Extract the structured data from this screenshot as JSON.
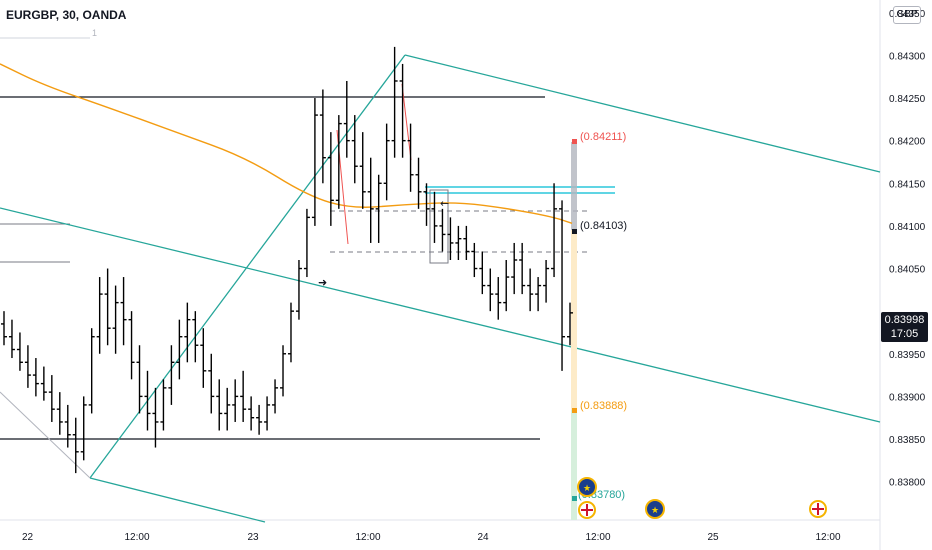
{
  "header": {
    "symbol": "EURGBP, 30, OANDA",
    "currency": "GBP",
    "indicator_value": "1"
  },
  "price_tag": {
    "price": "0.83998",
    "countdown": "17:05"
  },
  "annotations": {
    "target_high": "(0.84211)",
    "entry": "(0.84103)",
    "midpoint": "(0.83888)",
    "target_low": "(0.83780)"
  },
  "colors": {
    "candle": "#000000",
    "channel": "#26a69a",
    "ma": "#f39c12",
    "support": "#131722",
    "target_high": "#ef5350",
    "midpoint": "#f39c12",
    "target_low": "#26a69a",
    "horizontal_zone": "#00bcd4"
  },
  "chart_data": {
    "type": "candlestick",
    "symbol": "EURGBP",
    "timeframe": "30",
    "exchange": "OANDA",
    "ylim": [
      0.83755,
      0.84365
    ],
    "y_ticks": [
      "0.84350",
      "0.84300",
      "0.84250",
      "0.84200",
      "0.84150",
      "0.84100",
      "0.84050",
      "0.83950",
      "0.83900",
      "0.83850",
      "0.83800"
    ],
    "x_ticks": [
      "22",
      "12:00",
      "23",
      "12:00",
      "24",
      "12:00",
      "25",
      "12:00"
    ],
    "last_price": 0.83998,
    "levels": {
      "resistance": 0.84267,
      "support": 0.83854,
      "target_high": 0.84211,
      "entry": 0.84103,
      "midpoint": 0.83888,
      "target_low": 0.8378
    },
    "ohlc": [
      [
        0.83985,
        0.84,
        0.8396,
        0.8397
      ],
      [
        0.8397,
        0.8399,
        0.83945,
        0.83955
      ],
      [
        0.83955,
        0.83975,
        0.8393,
        0.8394
      ],
      [
        0.8394,
        0.8396,
        0.8391,
        0.83925
      ],
      [
        0.83925,
        0.83945,
        0.839,
        0.83915
      ],
      [
        0.83915,
        0.83935,
        0.83895,
        0.83905
      ],
      [
        0.83905,
        0.83925,
        0.8387,
        0.83885
      ],
      [
        0.83885,
        0.83905,
        0.83855,
        0.8387
      ],
      [
        0.8387,
        0.8389,
        0.8384,
        0.83855
      ],
      [
        0.83855,
        0.83875,
        0.8381,
        0.83835
      ],
      [
        0.83835,
        0.839,
        0.83825,
        0.8389
      ],
      [
        0.8389,
        0.8398,
        0.8388,
        0.8397
      ],
      [
        0.8397,
        0.8404,
        0.8395,
        0.8402
      ],
      [
        0.8402,
        0.8405,
        0.8396,
        0.8398
      ],
      [
        0.8398,
        0.8403,
        0.8395,
        0.8401
      ],
      [
        0.8401,
        0.8404,
        0.8396,
        0.8399
      ],
      [
        0.8399,
        0.84,
        0.8392,
        0.8394
      ],
      [
        0.8394,
        0.8396,
        0.8388,
        0.839
      ],
      [
        0.839,
        0.8393,
        0.8386,
        0.8388
      ],
      [
        0.8388,
        0.8391,
        0.8384,
        0.8387
      ],
      [
        0.8387,
        0.8392,
        0.8386,
        0.8391
      ],
      [
        0.8391,
        0.8396,
        0.8389,
        0.8394
      ],
      [
        0.8394,
        0.8399,
        0.8392,
        0.8397
      ],
      [
        0.8397,
        0.8401,
        0.8394,
        0.8399
      ],
      [
        0.8399,
        0.84,
        0.8394,
        0.8396
      ],
      [
        0.8396,
        0.8398,
        0.8391,
        0.8393
      ],
      [
        0.8393,
        0.8395,
        0.8388,
        0.839
      ],
      [
        0.839,
        0.8392,
        0.8386,
        0.8388
      ],
      [
        0.8388,
        0.8391,
        0.8386,
        0.8389
      ],
      [
        0.8389,
        0.8392,
        0.8387,
        0.839
      ],
      [
        0.839,
        0.8393,
        0.8387,
        0.83885
      ],
      [
        0.83885,
        0.839,
        0.8386,
        0.83875
      ],
      [
        0.83875,
        0.8389,
        0.83855,
        0.8387
      ],
      [
        0.8387,
        0.839,
        0.8386,
        0.8389
      ],
      [
        0.8389,
        0.8392,
        0.8388,
        0.8391
      ],
      [
        0.8391,
        0.8396,
        0.839,
        0.8395
      ],
      [
        0.8395,
        0.8401,
        0.8394,
        0.84
      ],
      [
        0.84,
        0.8406,
        0.8399,
        0.8405
      ],
      [
        0.8405,
        0.8412,
        0.8404,
        0.8411
      ],
      [
        0.8411,
        0.8425,
        0.841,
        0.8423
      ],
      [
        0.8423,
        0.8426,
        0.8415,
        0.8418
      ],
      [
        0.8418,
        0.8421,
        0.841,
        0.8413
      ],
      [
        0.8413,
        0.8423,
        0.8412,
        0.8422
      ],
      [
        0.8422,
        0.8427,
        0.8418,
        0.842
      ],
      [
        0.842,
        0.8423,
        0.8415,
        0.8417
      ],
      [
        0.8417,
        0.8421,
        0.8412,
        0.8414
      ],
      [
        0.8414,
        0.8418,
        0.8408,
        0.8412
      ],
      [
        0.8412,
        0.8416,
        0.8408,
        0.8415
      ],
      [
        0.8415,
        0.8422,
        0.8413,
        0.842
      ],
      [
        0.842,
        0.8431,
        0.8418,
        0.8427
      ],
      [
        0.8427,
        0.8429,
        0.8418,
        0.842
      ],
      [
        0.842,
        0.8422,
        0.8414,
        0.8416
      ],
      [
        0.8416,
        0.8418,
        0.8412,
        0.8414
      ],
      [
        0.8414,
        0.8415,
        0.841,
        0.8412
      ],
      [
        0.8412,
        0.8414,
        0.8408,
        0.841
      ],
      [
        0.841,
        0.8412,
        0.8407,
        0.8409
      ],
      [
        0.8409,
        0.8411,
        0.8406,
        0.8408
      ],
      [
        0.8408,
        0.841,
        0.8406,
        0.84085
      ],
      [
        0.84085,
        0.841,
        0.8406,
        0.8407
      ],
      [
        0.8407,
        0.8408,
        0.8404,
        0.8405
      ],
      [
        0.8405,
        0.8407,
        0.8402,
        0.8403
      ],
      [
        0.8403,
        0.8405,
        0.84,
        0.8402
      ],
      [
        0.8402,
        0.8404,
        0.8399,
        0.8401
      ],
      [
        0.8401,
        0.8406,
        0.84,
        0.8404
      ],
      [
        0.8404,
        0.8408,
        0.8402,
        0.8406
      ],
      [
        0.8406,
        0.8408,
        0.8402,
        0.8403
      ],
      [
        0.8403,
        0.8405,
        0.84,
        0.8402
      ],
      [
        0.8402,
        0.8404,
        0.84,
        0.8403
      ],
      [
        0.8403,
        0.8406,
        0.8401,
        0.8405
      ],
      [
        0.8405,
        0.8415,
        0.8404,
        0.8412
      ],
      [
        0.8412,
        0.8413,
        0.8393,
        0.8397
      ],
      [
        0.8397,
        0.8401,
        0.8396,
        0.83998
      ]
    ],
    "moving_average": [
      [
        0,
        0.8429
      ],
      [
        0.05,
        0.84265
      ],
      [
        0.12,
        0.8424
      ],
      [
        0.2,
        0.8421
      ],
      [
        0.28,
        0.8418
      ],
      [
        0.35,
        0.84135
      ],
      [
        0.4,
        0.8412
      ],
      [
        0.46,
        0.84125
      ],
      [
        0.52,
        0.84128
      ],
      [
        0.58,
        0.8412
      ],
      [
        0.63,
        0.8411
      ],
      [
        0.65,
        0.84103
      ]
    ]
  }
}
